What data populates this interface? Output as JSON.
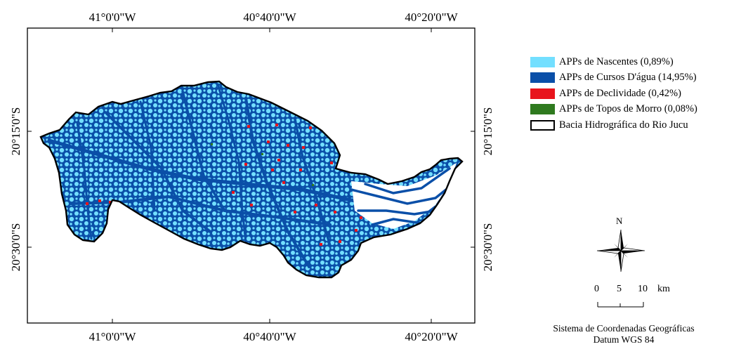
{
  "map": {
    "colors": {
      "springs": "#73dfff",
      "streams": "#0a4fa8",
      "slope": "#e8141c",
      "hilltops": "#2f7a1f",
      "basin_outline": "#000000"
    },
    "top_ticks": [
      "41°0'0\"W",
      "40°40'0\"W",
      "40°20'0\"W"
    ],
    "bottom_ticks": [
      "41°0'0\"W",
      "40°40'0\"W",
      "40°20'0\"W"
    ],
    "left_ticks": [
      "20°15'0\"S",
      "20°30'0\"S"
    ],
    "right_ticks": [
      "20°15'0\"S",
      "20°30'0\"S"
    ]
  },
  "legend": {
    "items": [
      {
        "label": "APPs de Nascentes (0,89%)",
        "color": "#73dfff"
      },
      {
        "label": "APPs de Cursos D'água (14,95%)",
        "color": "#0a4fa8"
      },
      {
        "label": "APPs de Declividade (0,42%)",
        "color": "#e8141c"
      },
      {
        "label": "APPs de Topos de Morro (0,08%)",
        "color": "#2f7a1f"
      },
      {
        "label": "Bacia Hidrográfica do Rio Jucu",
        "color": "#ffffff",
        "outline": true
      }
    ]
  },
  "north_arrow": {
    "label": "N"
  },
  "scale_bar": {
    "labels": [
      "0",
      "5",
      "10"
    ],
    "unit": "km"
  },
  "credits": {
    "line1": "Sistema de Coordenadas Geográficas",
    "line2": "Datum WGS 84"
  }
}
